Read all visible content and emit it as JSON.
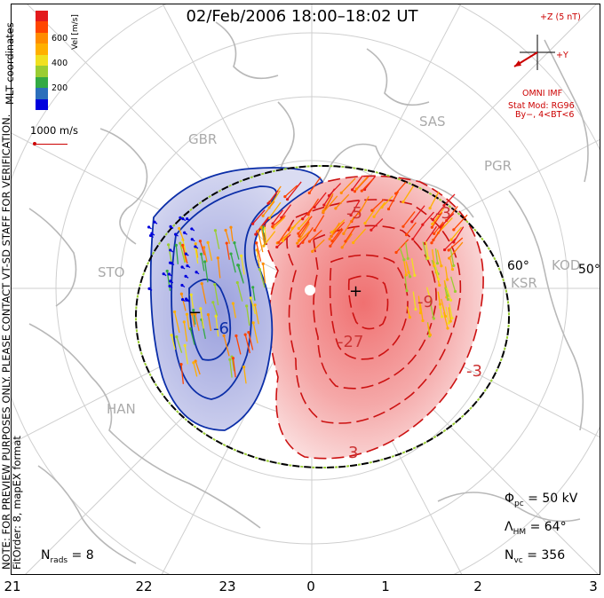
{
  "title": "02/Feb/2006 18:00–18:02 UT",
  "side_note": {
    "line1": "NOTE: FOR PREVIEW PURPOSES ONLY. PLEASE CONTACT VT-SD STAFF FOR VERIFICATION.",
    "line2": "FitOrder: 8, mapEX format",
    "coord_label": "MLT coordinates"
  },
  "colorbar": {
    "title": "Vel [m/s]",
    "ticks": [
      "600",
      "400",
      "200"
    ],
    "colors": [
      "#e31a1c",
      "#ff4500",
      "#ff8c00",
      "#ffb000",
      "#f0e020",
      "#9acd32",
      "#33aa44",
      "#2c6fbb",
      "#0000dd"
    ]
  },
  "scale": {
    "label": "1000 m/s"
  },
  "imf": {
    "z_label": "+Z (5 nT)",
    "y_label": "+Y",
    "source": "OMNI IMF",
    "stat_mod": "Stat Mod: RG96",
    "condition": "By−, 4<BT<6"
  },
  "stats": {
    "phi_symbol": "Φ",
    "phi_sub": "pc",
    "phi_value": " = 50 kV",
    "lambda_symbol": "Λ",
    "lambda_sub": "HM",
    "lambda_value": " = 64°",
    "nvc_symbol": "N",
    "nvc_sub": "vc",
    "nvc_value": " = 356",
    "nrads_symbol": "N",
    "nrads_sub": "rads",
    "nrads_value": " = 8"
  },
  "mlt_labels": [
    "21",
    "22",
    "23",
    "0",
    "1",
    "2",
    "3"
  ],
  "lat_labels": [
    "60°",
    "50°"
  ],
  "stations": [
    "GBR",
    "SAS",
    "PGR",
    "STO",
    "KOD",
    "HAN",
    "KSR"
  ],
  "contour_labels": [
    "-5",
    "-6",
    "-9",
    "-3",
    "+",
    "-27",
    "-3",
    "3"
  ],
  "marks": {
    "max_symbol": "+",
    "min_symbol": "−"
  },
  "colors": {
    "positive": "#cc0000",
    "negative": "#0000aa",
    "land": "#bbbbbb",
    "grid": "#cccccc"
  }
}
